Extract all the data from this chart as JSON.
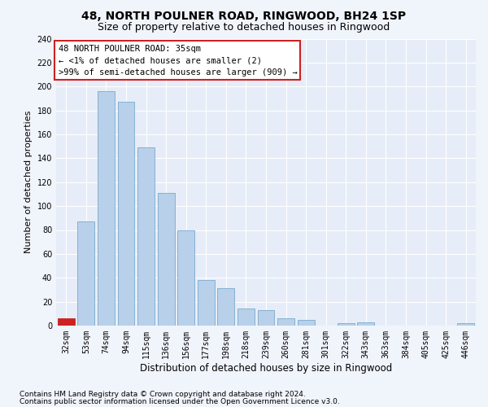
{
  "title": "48, NORTH POULNER ROAD, RINGWOOD, BH24 1SP",
  "subtitle": "Size of property relative to detached houses in Ringwood",
  "xlabel": "Distribution of detached houses by size in Ringwood",
  "ylabel": "Number of detached properties",
  "categories": [
    "32sqm",
    "53sqm",
    "74sqm",
    "94sqm",
    "115sqm",
    "136sqm",
    "156sqm",
    "177sqm",
    "198sqm",
    "218sqm",
    "239sqm",
    "260sqm",
    "281sqm",
    "301sqm",
    "322sqm",
    "343sqm",
    "363sqm",
    "384sqm",
    "405sqm",
    "425sqm",
    "446sqm"
  ],
  "bar_heights": [
    6,
    87,
    196,
    187,
    149,
    111,
    80,
    38,
    31,
    14,
    13,
    6,
    5,
    0,
    2,
    3,
    0,
    0,
    0,
    0,
    2
  ],
  "bar_color": "#b8d0ea",
  "bar_edge_color": "#7aaace",
  "highlight_bar_index": 0,
  "highlight_color": "#cc2222",
  "annotation_text": "48 NORTH POULNER ROAD: 35sqm\n← <1% of detached houses are smaller (2)\n>99% of semi-detached houses are larger (909) →",
  "annotation_box_color": "#ffffff",
  "annotation_box_edge_color": "#cc2222",
  "ylim": [
    0,
    240
  ],
  "yticks": [
    0,
    20,
    40,
    60,
    80,
    100,
    120,
    140,
    160,
    180,
    200,
    220,
    240
  ],
  "footer1": "Contains HM Land Registry data © Crown copyright and database right 2024.",
  "footer2": "Contains public sector information licensed under the Open Government Licence v3.0.",
  "bg_color": "#f0f4fb",
  "plot_bg_color": "#e6edf8",
  "grid_color": "#ffffff",
  "title_fontsize": 10,
  "subtitle_fontsize": 9,
  "tick_fontsize": 7,
  "ylabel_fontsize": 8,
  "xlabel_fontsize": 8.5,
  "annotation_fontsize": 7.5,
  "footer_fontsize": 6.5
}
